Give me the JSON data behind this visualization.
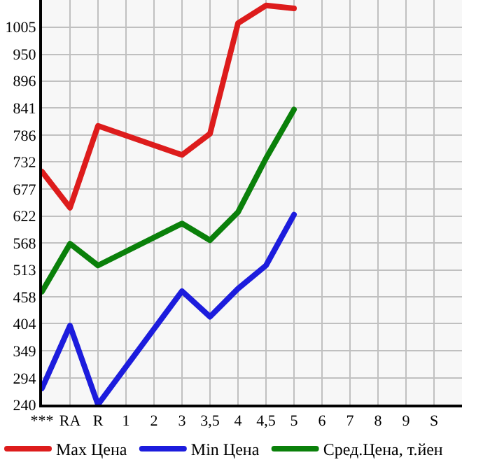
{
  "chart_data": {
    "type": "line",
    "categories": [
      "***",
      "RA",
      "R",
      "1",
      "2",
      "3",
      "3,5",
      "4",
      "4,5",
      "5",
      "6",
      "7",
      "8",
      "9",
      "S"
    ],
    "series": [
      {
        "name": "Max Цена",
        "color": "#dd1c1c",
        "values": [
          712,
          639,
          805,
          null,
          null,
          746,
          789,
          1013,
          1049,
          1043,
          null,
          null,
          null,
          null,
          null
        ]
      },
      {
        "name": "Min Цена",
        "color": "#1c1cdd",
        "values": [
          273,
          400,
          240,
          null,
          null,
          470,
          418,
          475,
          522,
          625,
          null,
          null,
          null,
          null,
          null
        ]
      },
      {
        "name": "Сред.Цена, т.йен",
        "color": "#0a800a",
        "values": [
          469,
          566,
          522,
          null,
          null,
          607,
          573,
          630,
          739,
          838,
          null,
          null,
          null,
          null,
          null
        ]
      }
    ],
    "ylim": [
      240,
      1060
    ],
    "yticks": [
      240,
      294,
      349,
      404,
      458,
      513,
      568,
      622,
      677,
      732,
      786,
      841,
      896,
      950,
      1005
    ],
    "grid": true,
    "legend": "bottom",
    "marker": "none",
    "line_style": "solid"
  }
}
